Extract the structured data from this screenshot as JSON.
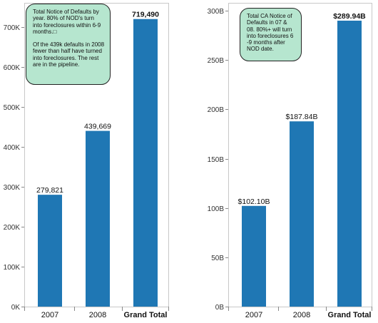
{
  "chart_data": [
    {
      "type": "bar",
      "categories": [
        "2007",
        "2008",
        "Grand Total"
      ],
      "values": [
        279821,
        439669,
        719490
      ],
      "data_labels": [
        "279,821",
        "439,669",
        "719,490"
      ],
      "ylim": [
        0,
        760000
      ],
      "yticks": [
        {
          "value": 0,
          "label": "0K"
        },
        {
          "value": 100000,
          "label": "100K"
        },
        {
          "value": 200000,
          "label": "200K"
        },
        {
          "value": 300000,
          "label": "300K"
        },
        {
          "value": 400000,
          "label": "400K"
        },
        {
          "value": 500000,
          "label": "500K"
        },
        {
          "value": 600000,
          "label": "600K"
        },
        {
          "value": 700000,
          "label": "700K"
        }
      ],
      "bar_color": "#1f77b4",
      "grid": false,
      "annotation": [
        "Total Notice of Defaults by year. 80% of NOD's turn into foreclosures within 6-9 months.□",
        "Of the 439k defaults in 2008 fewer than half have turned into foreclosures. The rest are in the pipeline."
      ]
    },
    {
      "type": "bar",
      "categories": [
        "2007",
        "2008",
        "Grand Total"
      ],
      "values": [
        102.1,
        187.84,
        289.94
      ],
      "data_labels": [
        "$102.10B",
        "$187.84B",
        "$289.94B"
      ],
      "ylim": [
        0,
        308
      ],
      "yticks": [
        {
          "value": 0,
          "label": "0B"
        },
        {
          "value": 50,
          "label": "50B"
        },
        {
          "value": 100,
          "label": "100B"
        },
        {
          "value": 150,
          "label": "150B"
        },
        {
          "value": 200,
          "label": "200B"
        },
        {
          "value": 250,
          "label": "250B"
        },
        {
          "value": 300,
          "label": "300B"
        }
      ],
      "bar_color": "#1f77b4",
      "grid": false,
      "annotation": [
        "Total CA Notice of Defaults in 07 & 08. 80%+ will turn into foreclosures 6 -9 months after NOD date."
      ]
    }
  ]
}
